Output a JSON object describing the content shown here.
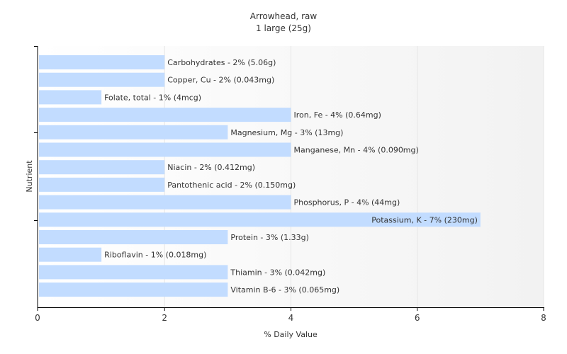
{
  "chart_data": {
    "type": "bar",
    "orientation": "horizontal",
    "title": "Arrowhead, raw",
    "subtitle": "1 large (25g)",
    "xlabel": "% Daily Value",
    "ylabel": "Nutrient",
    "xlim": [
      0,
      8
    ],
    "xticks": [
      0,
      2,
      4,
      6,
      8
    ],
    "grid": "vertical",
    "bar_color": "#c2dcff",
    "categories": [
      "Carbohydrates",
      "Copper, Cu",
      "Folate, total",
      "Iron, Fe",
      "Magnesium, Mg",
      "Manganese, Mn",
      "Niacin",
      "Pantothenic acid",
      "Phosphorus, P",
      "Potassium, K",
      "Protein",
      "Riboflavin",
      "Thiamin",
      "Vitamin B-6"
    ],
    "values": [
      2,
      2,
      1,
      4,
      3,
      4,
      2,
      2,
      4,
      7,
      3,
      1,
      3,
      3
    ],
    "labels": [
      "Carbohydrates - 2% (5.06g)",
      "Copper, Cu - 2% (0.043mg)",
      "Folate, total - 1% (4mcg)",
      "Iron, Fe - 4% (0.64mg)",
      "Magnesium, Mg - 3% (13mg)",
      "Manganese, Mn - 4% (0.090mg)",
      "Niacin - 2% (0.412mg)",
      "Pantothenic acid - 2% (0.150mg)",
      "Phosphorus, P - 4% (44mg)",
      "Potassium, K - 7% (230mg)",
      "Protein - 3% (1.33g)",
      "Riboflavin - 1% (0.018mg)",
      "Thiamin - 3% (0.042mg)",
      "Vitamin B-6 - 3% (0.065mg)"
    ]
  }
}
